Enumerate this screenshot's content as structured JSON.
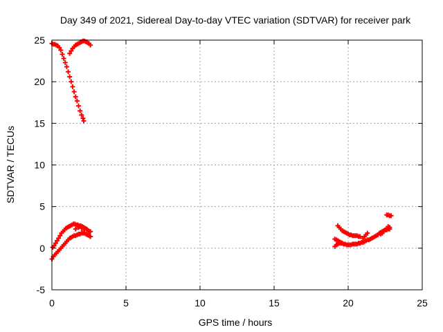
{
  "chart_data": {
    "type": "scatter",
    "title": "Day 349 of 2021, Sidereal Day-to-day VTEC variation (SDTVAR) for receiver park",
    "xlabel": "GPS time / hours",
    "ylabel": "SDTVAR / TECUs",
    "xlim": [
      0,
      25
    ],
    "ylim": [
      -5,
      25
    ],
    "xticks": [
      0,
      5,
      10,
      15,
      20,
      25
    ],
    "yticks": [
      -5,
      0,
      5,
      10,
      15,
      20,
      25
    ],
    "grid": true,
    "legend": "none",
    "marker": "plus",
    "colors": {
      "series": "#ff0000",
      "grid": "#a0a0a0",
      "axes": "#000000"
    },
    "series": [
      {
        "points": [
          [
            0.0,
            24.6
          ],
          [
            0.1,
            24.5
          ],
          [
            0.2,
            24.5
          ],
          [
            0.3,
            24.4
          ],
          [
            0.4,
            24.3
          ],
          [
            0.5,
            24.1
          ],
          [
            0.6,
            23.8
          ],
          [
            0.7,
            23.3
          ],
          [
            0.8,
            22.8
          ],
          [
            0.9,
            22.3
          ],
          [
            1.0,
            21.8
          ],
          [
            1.1,
            21.2
          ],
          [
            1.2,
            20.6
          ],
          [
            1.3,
            20.0
          ],
          [
            1.4,
            19.4
          ],
          [
            1.5,
            18.8
          ],
          [
            1.6,
            18.2
          ],
          [
            1.7,
            17.7
          ],
          [
            1.8,
            17.1
          ],
          [
            1.9,
            16.5
          ],
          [
            2.0,
            16.0
          ],
          [
            2.1,
            15.6
          ],
          [
            2.15,
            15.3
          ],
          [
            1.2,
            23.4
          ],
          [
            1.3,
            23.7
          ],
          [
            1.4,
            24.0
          ],
          [
            1.5,
            24.2
          ],
          [
            1.6,
            24.4
          ],
          [
            1.7,
            24.5
          ],
          [
            1.8,
            24.6
          ],
          [
            1.9,
            24.7
          ],
          [
            2.0,
            24.8
          ],
          [
            2.1,
            24.9
          ],
          [
            2.2,
            24.9
          ],
          [
            2.3,
            24.8
          ],
          [
            2.4,
            24.7
          ],
          [
            2.5,
            24.6
          ],
          [
            2.6,
            24.4
          ]
        ]
      },
      {
        "points": [
          [
            0.05,
            0.1
          ],
          [
            0.15,
            0.3
          ],
          [
            0.25,
            0.6
          ],
          [
            0.35,
            0.9
          ],
          [
            0.45,
            1.2
          ],
          [
            0.55,
            1.5
          ],
          [
            0.65,
            1.8
          ],
          [
            0.75,
            2.0
          ],
          [
            0.85,
            2.2
          ],
          [
            0.95,
            2.4
          ],
          [
            1.05,
            2.5
          ],
          [
            1.15,
            2.6
          ],
          [
            1.25,
            2.7
          ],
          [
            1.35,
            2.8
          ],
          [
            1.45,
            2.9
          ],
          [
            1.55,
            2.9
          ],
          [
            1.65,
            2.8
          ],
          [
            1.75,
            2.8
          ],
          [
            1.85,
            2.7
          ],
          [
            1.95,
            2.7
          ],
          [
            2.05,
            2.6
          ],
          [
            2.15,
            2.5
          ],
          [
            2.25,
            2.4
          ],
          [
            2.35,
            2.3
          ],
          [
            2.45,
            2.1
          ],
          [
            2.55,
            2.0
          ],
          [
            2.6,
            2.0
          ],
          [
            0.0,
            -1.3
          ],
          [
            0.1,
            -1.0
          ],
          [
            0.2,
            -0.8
          ],
          [
            0.3,
            -0.6
          ],
          [
            0.4,
            -0.4
          ],
          [
            0.5,
            -0.2
          ],
          [
            0.6,
            0.0
          ],
          [
            0.7,
            0.2
          ],
          [
            0.8,
            0.4
          ],
          [
            0.9,
            0.6
          ],
          [
            1.0,
            0.8
          ],
          [
            1.1,
            1.0
          ],
          [
            1.2,
            1.2
          ],
          [
            1.3,
            1.3
          ],
          [
            1.4,
            1.4
          ],
          [
            1.5,
            1.5
          ],
          [
            1.6,
            1.5
          ],
          [
            1.7,
            1.6
          ],
          [
            1.8,
            1.7
          ],
          [
            1.9,
            1.7
          ],
          [
            2.0,
            1.8
          ],
          [
            2.1,
            1.8
          ],
          [
            2.2,
            1.8
          ],
          [
            2.3,
            1.7
          ],
          [
            2.4,
            1.6
          ],
          [
            2.5,
            1.5
          ],
          [
            2.6,
            1.4
          ],
          [
            1.6,
            2.3
          ],
          [
            1.8,
            2.5
          ],
          [
            2.0,
            2.4
          ],
          [
            2.2,
            2.2
          ],
          [
            2.4,
            2.2
          ]
        ]
      },
      {
        "points": [
          [
            19.1,
            0.2
          ],
          [
            19.2,
            0.4
          ],
          [
            19.3,
            0.5
          ],
          [
            19.4,
            0.6
          ],
          [
            19.5,
            0.6
          ],
          [
            19.6,
            0.6
          ],
          [
            19.7,
            0.5
          ],
          [
            19.8,
            0.5
          ],
          [
            19.9,
            0.4
          ],
          [
            20.0,
            0.4
          ],
          [
            20.1,
            0.4
          ],
          [
            20.2,
            0.4
          ],
          [
            20.3,
            0.5
          ],
          [
            20.4,
            0.5
          ],
          [
            20.5,
            0.5
          ],
          [
            20.6,
            0.5
          ],
          [
            20.7,
            0.6
          ],
          [
            20.8,
            0.6
          ],
          [
            20.9,
            0.7
          ],
          [
            21.0,
            0.7
          ],
          [
            21.1,
            0.8
          ],
          [
            21.2,
            0.9
          ],
          [
            21.3,
            1.0
          ],
          [
            21.4,
            1.0
          ],
          [
            21.5,
            1.1
          ],
          [
            21.6,
            1.2
          ],
          [
            21.7,
            1.3
          ],
          [
            21.8,
            1.4
          ],
          [
            21.9,
            1.5
          ],
          [
            22.0,
            1.6
          ],
          [
            22.1,
            1.8
          ],
          [
            22.2,
            1.9
          ],
          [
            22.3,
            2.0
          ],
          [
            22.4,
            2.1
          ],
          [
            22.5,
            2.2
          ],
          [
            22.6,
            2.2
          ],
          [
            22.7,
            2.3
          ],
          [
            22.8,
            2.3
          ],
          [
            19.3,
            2.7
          ],
          [
            19.4,
            2.5
          ],
          [
            19.5,
            2.3
          ],
          [
            19.6,
            2.1
          ],
          [
            19.7,
            2.0
          ],
          [
            19.8,
            1.9
          ],
          [
            19.9,
            1.8
          ],
          [
            20.0,
            1.7
          ],
          [
            20.1,
            1.6
          ],
          [
            20.2,
            1.6
          ],
          [
            20.3,
            1.5
          ],
          [
            20.4,
            1.5
          ],
          [
            20.5,
            1.5
          ],
          [
            20.6,
            1.5
          ],
          [
            20.7,
            1.4
          ],
          [
            20.8,
            1.4
          ],
          [
            19.1,
            1.1
          ],
          [
            19.2,
            1.0
          ],
          [
            19.3,
            0.9
          ],
          [
            19.4,
            0.8
          ],
          [
            19.5,
            0.7
          ],
          [
            19.6,
            0.6
          ],
          [
            21.0,
            1.2
          ],
          [
            21.1,
            1.4
          ],
          [
            21.2,
            1.6
          ],
          [
            21.3,
            1.8
          ],
          [
            22.2,
            1.7
          ],
          [
            22.3,
            1.8
          ],
          [
            22.4,
            2.0
          ],
          [
            22.5,
            2.2
          ],
          [
            22.6,
            2.4
          ],
          [
            22.7,
            2.6
          ],
          [
            22.8,
            2.5
          ],
          [
            22.6,
            4.0
          ],
          [
            22.7,
            4.0
          ],
          [
            22.8,
            3.9
          ],
          [
            22.9,
            3.9
          ]
        ]
      }
    ]
  }
}
